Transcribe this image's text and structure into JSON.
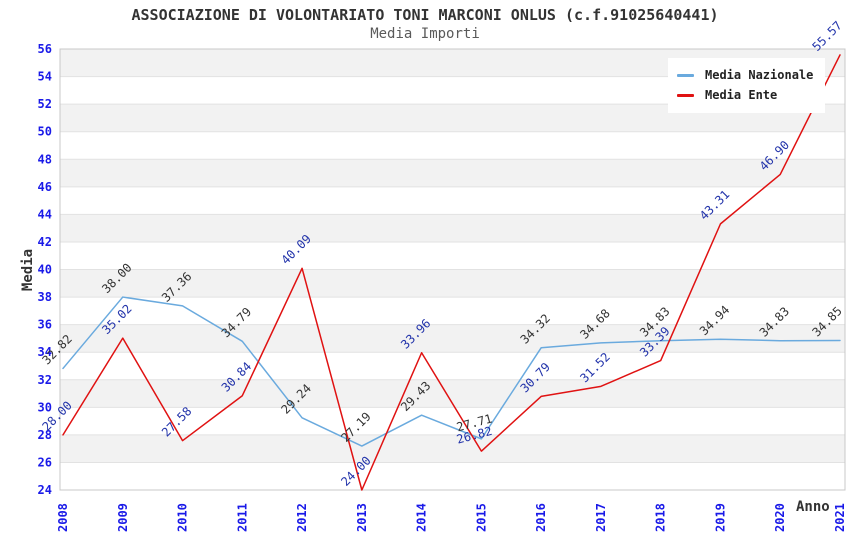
{
  "chart_data": {
    "type": "line",
    "title": "ASSOCIAZIONE DI VOLONTARIATO TONI MARCONI ONLUS (c.f.91025640441)",
    "subtitle": "Media Importi",
    "xlabel": "Anno",
    "ylabel": "Media",
    "categories": [
      2008,
      2009,
      2010,
      2011,
      2012,
      2013,
      2014,
      2015,
      2016,
      2017,
      2018,
      2019,
      2020,
      2021
    ],
    "ylim": [
      24,
      56
    ],
    "ytick_step": 2,
    "yticks": [
      24,
      26,
      28,
      30,
      32,
      34,
      36,
      38,
      40,
      42,
      44,
      46,
      48,
      50,
      52,
      54,
      56
    ],
    "grid": "horizontal-gridlines-with-alternating-bands",
    "legend_position": "top-right-inside",
    "point_labels_visible": true,
    "series": [
      {
        "name": "Media Nazionale",
        "color": "#6aaade",
        "label_color": "#333333",
        "values": [
          32.82,
          38.0,
          37.36,
          34.79,
          29.24,
          27.19,
          29.43,
          27.71,
          34.32,
          34.68,
          34.83,
          34.94,
          34.83,
          34.85
        ]
      },
      {
        "name": "Media Ente",
        "color": "#e01212",
        "label_color": "#2233aa",
        "values": [
          28.0,
          35.02,
          27.58,
          30.84,
          40.09,
          24.0,
          33.96,
          26.82,
          30.79,
          31.52,
          33.39,
          43.31,
          46.9,
          55.57
        ]
      }
    ],
    "colors": {
      "tick_label": "#1a1ae8",
      "band_fill": "#f2f2f2",
      "gridline": "#e2e2e2",
      "plot_border": "#c8c8c8",
      "title_text": "#333333",
      "subtitle_text": "#5a5a5a"
    }
  }
}
